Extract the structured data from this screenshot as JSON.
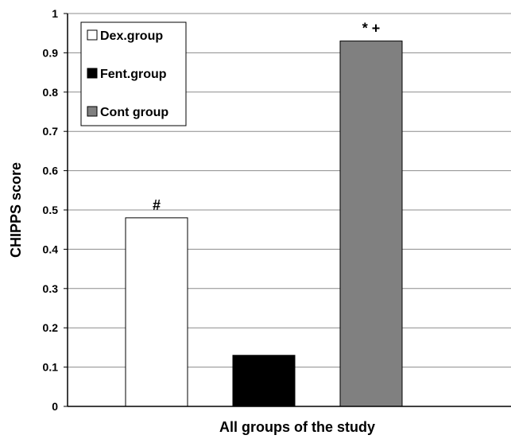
{
  "chart_data": {
    "type": "bar",
    "title": "",
    "xlabel": "All groups of the study",
    "ylabel": "CHIPPS score",
    "ylim": [
      0,
      1
    ],
    "yticks": [
      "0",
      "0.1",
      "0.2",
      "0.3",
      "0.4",
      "0.5",
      "0.6",
      "0.7",
      "0.8",
      "0.9",
      "1"
    ],
    "grid": true,
    "legend_position": "top-left",
    "categories": [
      "Dex.group",
      "Fent.group",
      "Cont group"
    ],
    "series": [
      {
        "name": "Dex.group",
        "values": [
          0.48,
          null,
          null
        ],
        "color": "#ffffff",
        "annotation": "#"
      },
      {
        "name": "Fent.group",
        "values": [
          null,
          0.13,
          null
        ],
        "color": "#000000",
        "annotation": ""
      },
      {
        "name": "Cont group",
        "values": [
          null,
          null,
          0.93
        ],
        "color": "#808080",
        "annotation": "* +"
      }
    ]
  }
}
